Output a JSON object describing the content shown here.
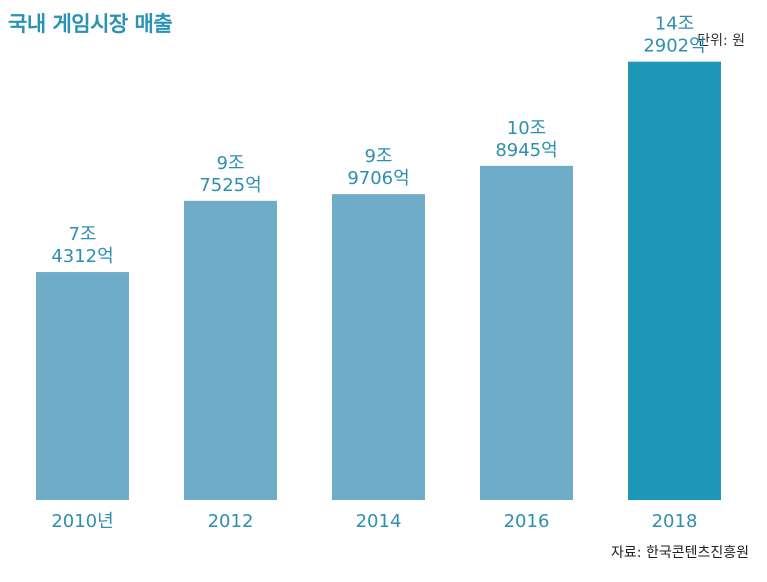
{
  "title": "국내 게임시장 매출",
  "unit_note": "단위: 원",
  "source_note": "자료: 한국콘텐츠진흥원",
  "colors": {
    "bar": "#6eacc7",
    "bar_highlight": "#1f97b6",
    "label": "#2f8fb0",
    "title": "#2a93b5"
  },
  "chart_data": {
    "type": "bar",
    "title": "국내 게임시장 매출",
    "categories": [
      "2010년",
      "2012",
      "2014",
      "2016",
      "2018"
    ],
    "values": [
      7.4312,
      9.7525,
      9.9706,
      10.8945,
      14.2902
    ],
    "data_labels": [
      [
        "7조",
        "4312억"
      ],
      [
        "9조",
        "7525억"
      ],
      [
        "9조",
        "9706억"
      ],
      [
        "10조",
        "8945억"
      ],
      [
        "14조",
        "2902억"
      ]
    ],
    "value_unit": "조 원",
    "highlight_index": 4,
    "ylim": [
      0,
      16.3
    ],
    "grid": false,
    "legend": "none"
  }
}
